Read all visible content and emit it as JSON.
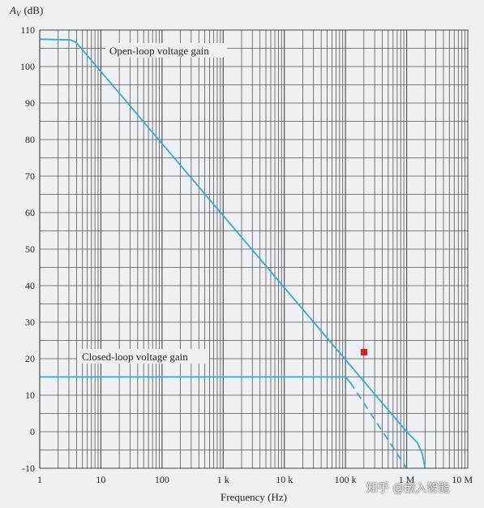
{
  "chart_data": {
    "type": "line",
    "xscale": "log",
    "xlim": [
      1,
      10000000
    ],
    "ylim": [
      -10,
      110
    ],
    "grid": true,
    "ylabel_symbol": "A",
    "ylabel_sub": "V",
    "ylabel_unit": "(dB)",
    "xlabel": "Frequency (Hz)",
    "xticks": [
      {
        "value": 1,
        "label": "1"
      },
      {
        "value": 10,
        "label": "10"
      },
      {
        "value": 100,
        "label": "100"
      },
      {
        "value": 1000,
        "label": "1 k"
      },
      {
        "value": 10000,
        "label": "10 k"
      },
      {
        "value": 100000,
        "label": "100 k"
      },
      {
        "value": 1000000,
        "label": "1 M"
      },
      {
        "value": 10000000,
        "label": "10 M"
      }
    ],
    "yticks": [
      110,
      100,
      90,
      80,
      70,
      60,
      50,
      40,
      30,
      20,
      10,
      0,
      -10
    ],
    "series": [
      {
        "name": "Open-loop voltage gain",
        "style": "solid",
        "x": [
          1,
          3.2,
          4,
          1000000,
          1500000,
          1800000,
          2000000
        ],
        "y": [
          107.5,
          107.3,
          106.5,
          0,
          -3,
          -6,
          -10
        ]
      },
      {
        "name": "Closed-loop voltage gain",
        "style": "solid",
        "x": [
          1,
          100000,
          120000
        ],
        "y": [
          15,
          15,
          13.5
        ]
      },
      {
        "name": "",
        "style": "dashed",
        "x": [
          120000,
          1000000
        ],
        "y": [
          13.5,
          -10
        ]
      }
    ],
    "colors": {
      "curve": "#3aa6dc",
      "grid": "#555555",
      "marker": "#e02020"
    }
  },
  "watermark": "知乎 @嵌入智能"
}
